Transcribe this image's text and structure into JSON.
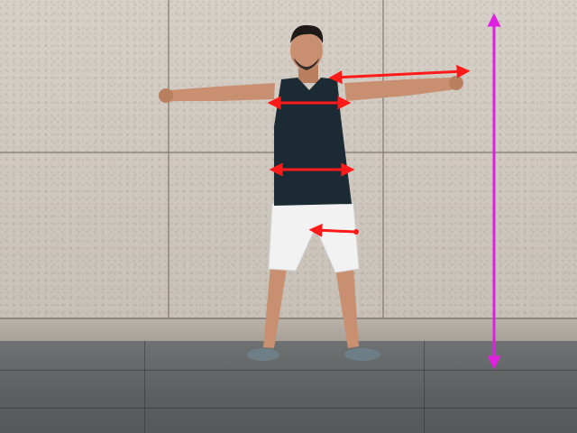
{
  "scene": {
    "description_label": "",
    "colors": {
      "wall": "#d2ccc4",
      "floor": "#5f6364",
      "skin": "#c89070",
      "tank_top": "#1c2a33",
      "shorts": "#f1f1f1",
      "measure_line_red": "#ff1a1a",
      "height_line_magenta": "#e020e0"
    }
  },
  "annotations": {
    "measurement_lines": [
      {
        "name": "arm-length"
      },
      {
        "name": "shoulder-width"
      },
      {
        "name": "waist-width"
      },
      {
        "name": "thigh-width"
      },
      {
        "name": "height"
      }
    ]
  }
}
